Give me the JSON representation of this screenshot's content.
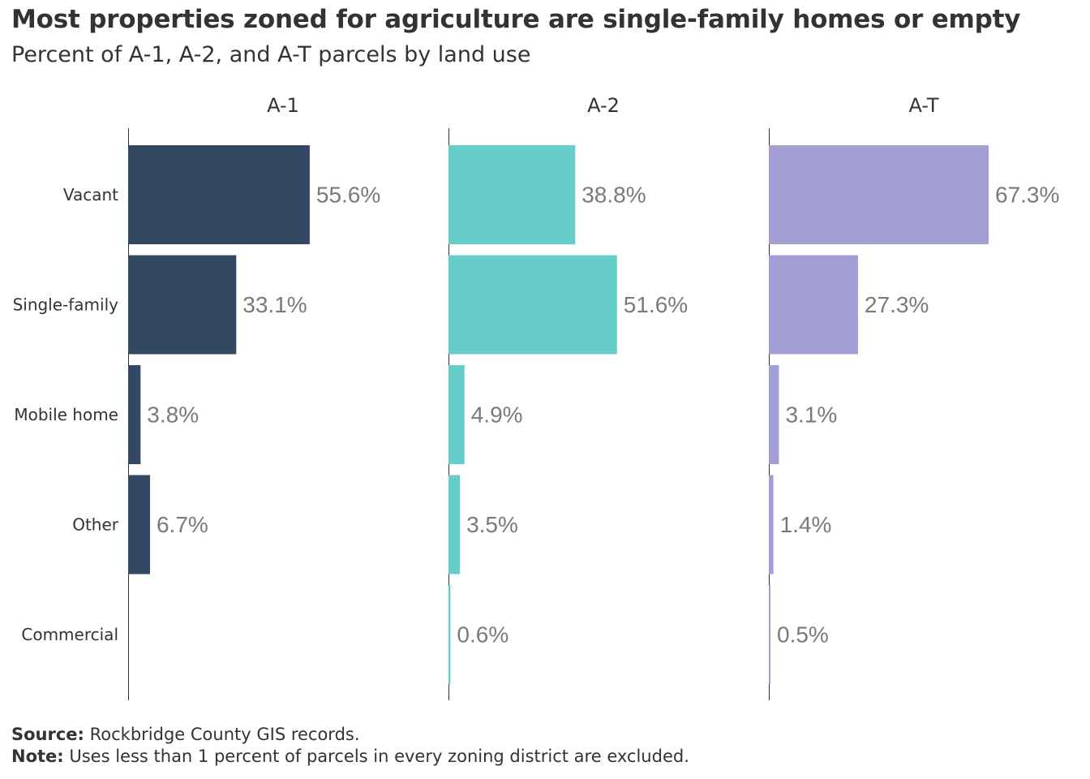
{
  "title": "Most properties zoned for agriculture are single-family homes or empty",
  "subtitle": "Percent of A-1, A-2, and A-T parcels by land use",
  "chart_data": {
    "type": "bar",
    "orientation": "horizontal",
    "categories": [
      "Vacant",
      "Single-family",
      "Mobile home",
      "Other",
      "Commercial"
    ],
    "xlim": [
      0,
      67.3
    ],
    "grid": false,
    "legend": "none",
    "panels": [
      {
        "title": "A-1",
        "color": "#334863",
        "values": [
          55.6,
          33.1,
          3.8,
          6.7,
          null
        ],
        "labels": [
          "55.6%",
          "33.1%",
          "3.8%",
          "6.7%",
          ""
        ]
      },
      {
        "title": "A-2",
        "color": "#66cdcb",
        "values": [
          38.8,
          51.6,
          4.9,
          3.5,
          0.6
        ],
        "labels": [
          "38.8%",
          "51.6%",
          "4.9%",
          "3.5%",
          "0.6%"
        ]
      },
      {
        "title": "A-T",
        "color": "#a39ed6",
        "values": [
          67.3,
          27.3,
          3.1,
          1.4,
          0.5
        ],
        "labels": [
          "67.3%",
          "27.3%",
          "3.1%",
          "1.4%",
          "0.5%"
        ]
      }
    ]
  },
  "footer": {
    "source_label": "Source:",
    "source_text": " Rockbridge County GIS records.",
    "note_label": "Note:",
    "note_text": " Uses less than 1 percent of parcels in every zoning district are excluded."
  }
}
